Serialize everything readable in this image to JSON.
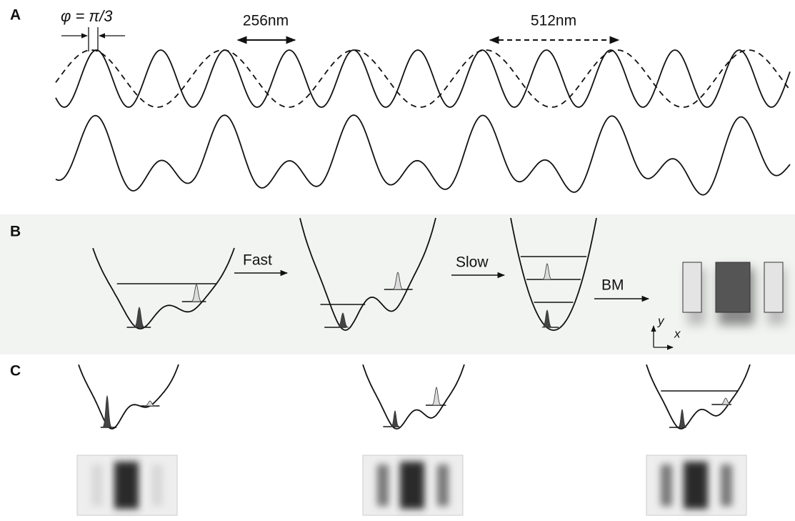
{
  "panels": {
    "a": {
      "label": "A",
      "phase": "φ = π/3",
      "short_period": "256nm",
      "long_period": "512nm"
    },
    "b": {
      "label": "B",
      "steps": [
        "Fast",
        "Slow",
        "BM"
      ],
      "axes": {
        "y": "y",
        "x": "x"
      }
    },
    "c": {
      "label": "C"
    }
  }
}
